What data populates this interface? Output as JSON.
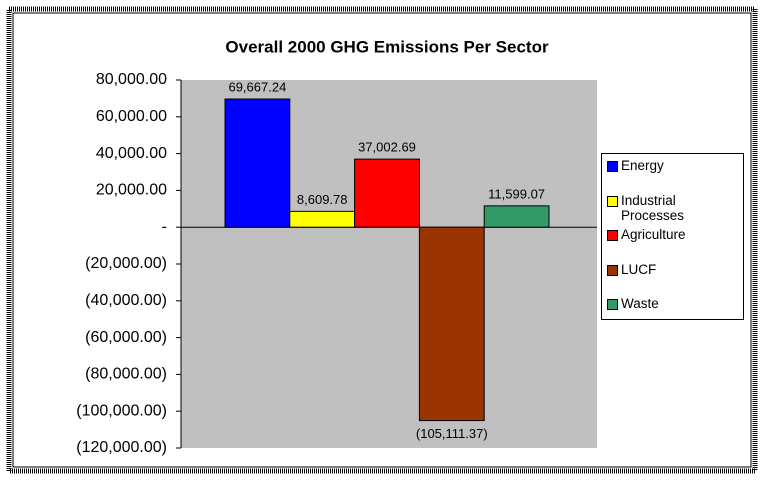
{
  "chart_data": {
    "type": "bar",
    "title": "Overall 2000 GHG Emissions Per Sector",
    "categories": [
      null
    ],
    "series": [
      {
        "name": "Energy",
        "color": "#0000ff",
        "values": [
          69667.24
        ],
        "value_labels": [
          "69,667.24"
        ]
      },
      {
        "name": "Industrial Processes",
        "color": "#ffff00",
        "values": [
          8609.78
        ],
        "value_labels": [
          "8,609.78"
        ]
      },
      {
        "name": "Agriculture",
        "color": "#ff0000",
        "values": [
          37002.69
        ],
        "value_labels": [
          "37,002.69"
        ]
      },
      {
        "name": "LUCF",
        "color": "#993300",
        "values": [
          -105111.37
        ],
        "value_labels": [
          "(105,111.37)"
        ]
      },
      {
        "name": "Waste",
        "color": "#339966",
        "values": [
          11599.07
        ],
        "value_labels": [
          "11,599.07"
        ]
      }
    ],
    "ylim": [
      -120000,
      80000
    ],
    "yticks": [
      {
        "value": 80000,
        "label": "80,000.00"
      },
      {
        "value": 60000,
        "label": "60,000.00"
      },
      {
        "value": 40000,
        "label": "40,000.00"
      },
      {
        "value": 20000,
        "label": "20,000.00"
      },
      {
        "value": 0,
        "label": "-"
      },
      {
        "value": -20000,
        "label": "(20,000.00)"
      },
      {
        "value": -40000,
        "label": "(40,000.00)"
      },
      {
        "value": -60000,
        "label": "(60,000.00)"
      },
      {
        "value": -80000,
        "label": "(80,000.00)"
      },
      {
        "value": -100000,
        "label": "(100,000.00)"
      },
      {
        "value": -120000,
        "label": "(120,000.00)"
      }
    ],
    "plot_background": "#c0c0c0",
    "grid": false,
    "legend": "right"
  }
}
